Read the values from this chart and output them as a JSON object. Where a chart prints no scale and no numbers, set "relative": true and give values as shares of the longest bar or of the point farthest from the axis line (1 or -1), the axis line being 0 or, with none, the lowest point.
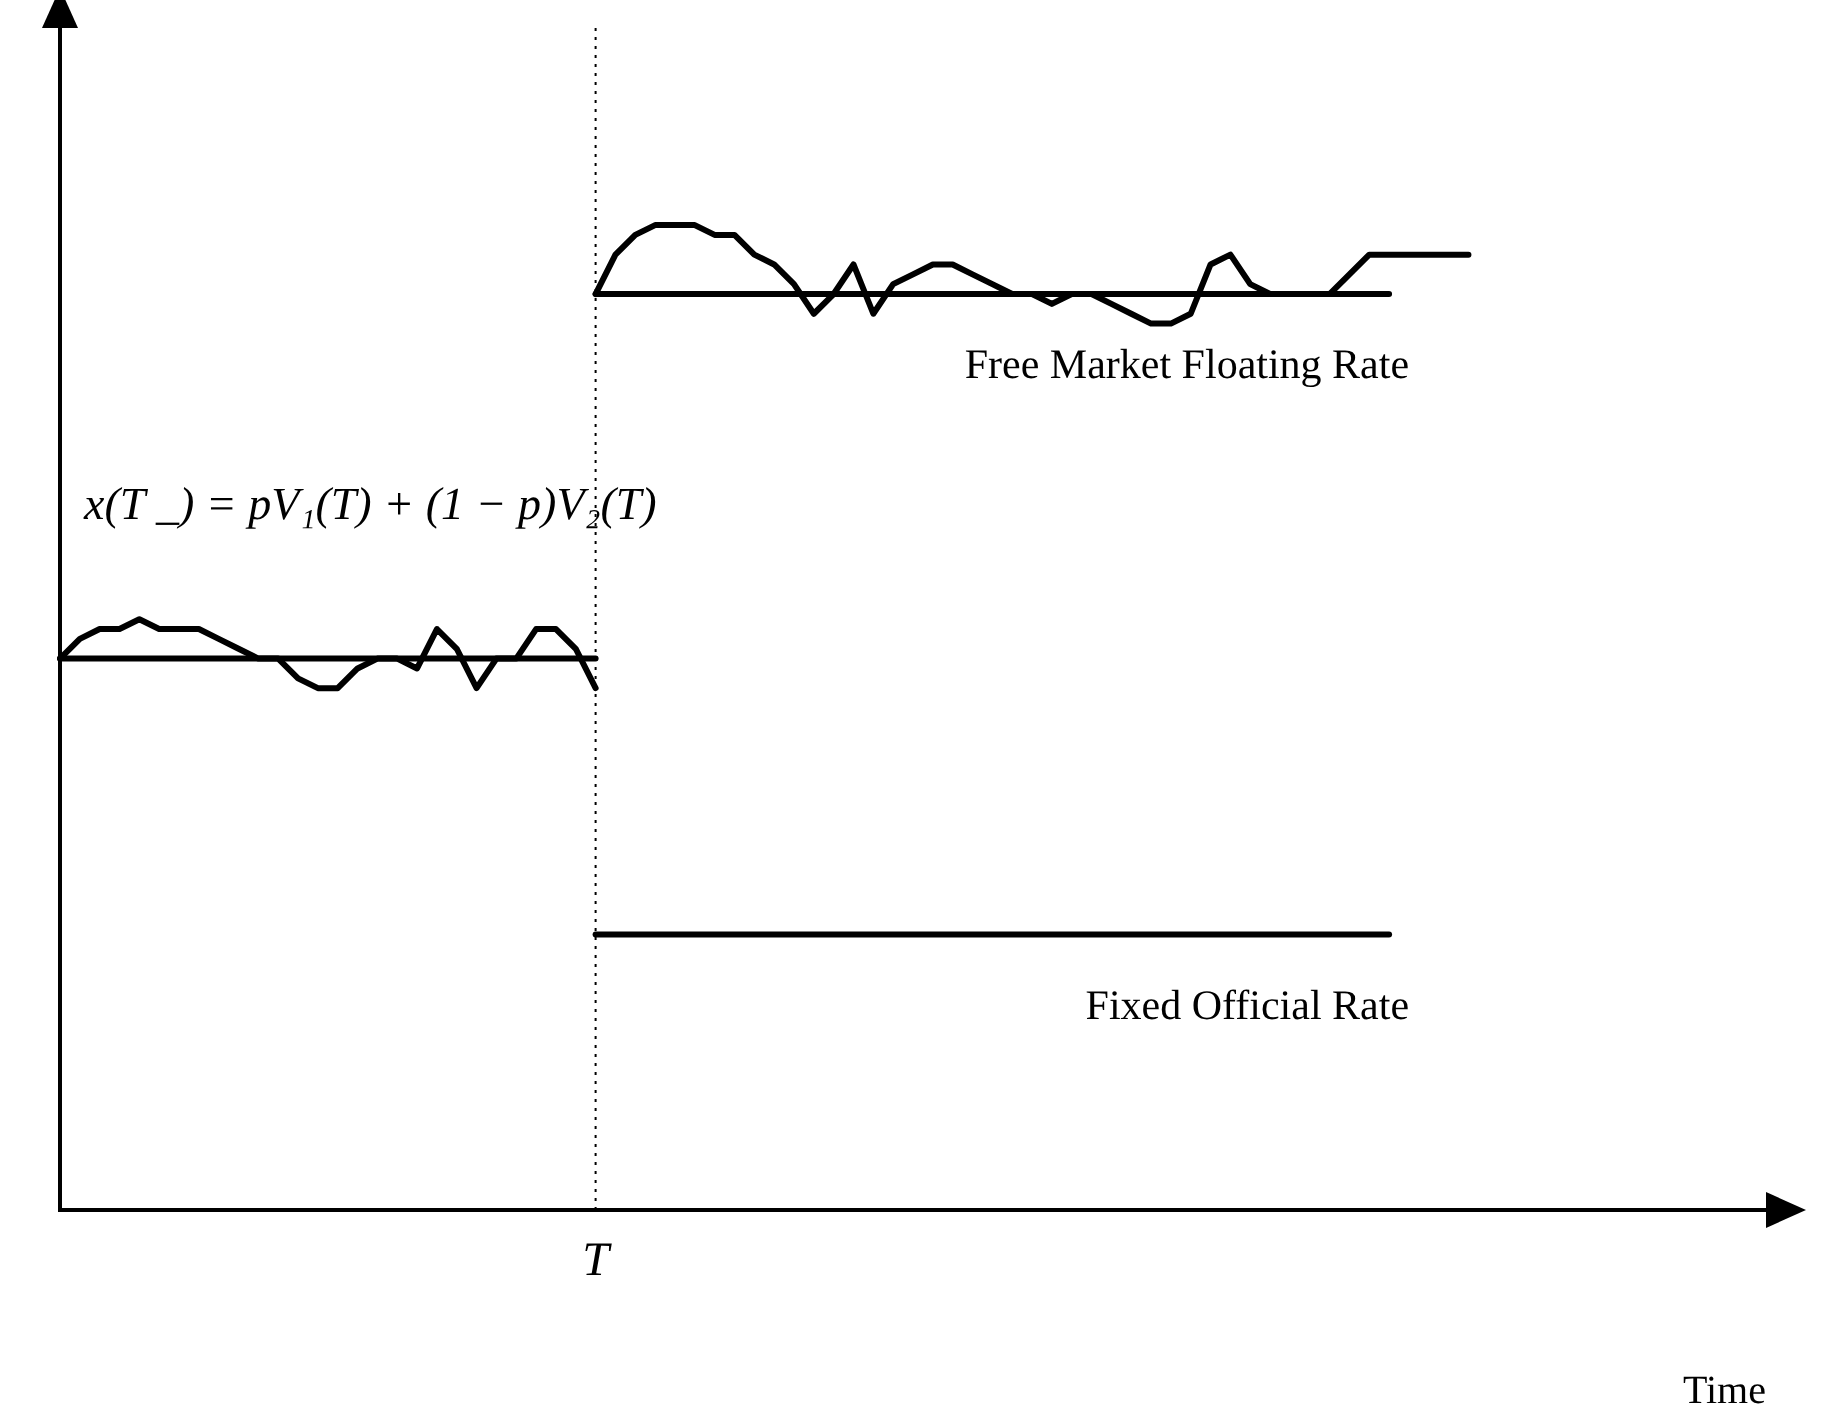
{
  "chart_data": {
    "type": "line",
    "relative": true,
    "xlabel": "Time",
    "legend": false,
    "grid": false,
    "marker": "none",
    "line_style": "solid",
    "categories": [
      null,
      null,
      null,
      null,
      null,
      null,
      null,
      null,
      null,
      null,
      null,
      null,
      null,
      null,
      null,
      null,
      null,
      null,
      null,
      null,
      null,
      null,
      null,
      null,
      null,
      null,
      null,
      null,
      null,
      null,
      null,
      null,
      null,
      null,
      null,
      null,
      null,
      null,
      null,
      null,
      null,
      null,
      null,
      null,
      null,
      null,
      null,
      null,
      null,
      null,
      null,
      null,
      null,
      null,
      null,
      null,
      null,
      null,
      null,
      null,
      null,
      null,
      null,
      null,
      null,
      null,
      null,
      null,
      null,
      null,
      null,
      null,
      null,
      null,
      null,
      null,
      null,
      null,
      null,
      null,
      null,
      null,
      null,
      null,
      null,
      null,
      null
    ],
    "series": [
      {
        "color": "#000000",
        "values": [
          0.56,
          0.58,
          0.59,
          0.59,
          0.6,
          0.59,
          0.59,
          0.59,
          0.58,
          0.57,
          0.56,
          0.56,
          0.54,
          0.53,
          0.53,
          0.55,
          0.56,
          0.56,
          0.55,
          0.59,
          0.57,
          0.53,
          0.56,
          0.56,
          0.59,
          0.59,
          0.57,
          0.53,
          null,
          null,
          null,
          null,
          null,
          null,
          null,
          null,
          null,
          null,
          null,
          null,
          null,
          null,
          null,
          null,
          null,
          null,
          null,
          null,
          null,
          null,
          null,
          null,
          null,
          null,
          null,
          null,
          null,
          null,
          null,
          null,
          null,
          null,
          null,
          null,
          null,
          null,
          null,
          null,
          null,
          null,
          null,
          null,
          null,
          null,
          null,
          null,
          null,
          null,
          null,
          null,
          null,
          null,
          null,
          null,
          null,
          null,
          null
        ]
      },
      {
        "color": "#000000",
        "values": [
          0.56,
          0.56,
          0.56,
          0.56,
          0.56,
          0.56,
          0.56,
          0.56,
          0.56,
          0.56,
          0.56,
          0.56,
          0.56,
          0.56,
          0.56,
          0.56,
          0.56,
          0.56,
          0.56,
          0.56,
          0.56,
          0.56,
          0.56,
          0.56,
          0.56,
          0.56,
          0.56,
          0.56,
          null,
          null,
          null,
          null,
          null,
          null,
          null,
          null,
          null,
          null,
          null,
          null,
          null,
          null,
          null,
          null,
          null,
          null,
          null,
          null,
          null,
          null,
          null,
          null,
          null,
          null,
          null,
          null,
          null,
          null,
          null,
          null,
          null,
          null,
          null,
          null,
          null,
          null,
          null,
          null,
          null,
          null,
          null,
          null,
          null,
          null,
          null,
          null,
          null,
          null,
          null,
          null,
          null,
          null,
          null,
          null,
          null,
          null,
          null
        ]
      },
      {
        "color": "#000000",
        "values": [
          null,
          null,
          null,
          null,
          null,
          null,
          null,
          null,
          null,
          null,
          null,
          null,
          null,
          null,
          null,
          null,
          null,
          null,
          null,
          null,
          null,
          null,
          null,
          null,
          null,
          null,
          null,
          0.93,
          0.97,
          0.99,
          1,
          1,
          1,
          0.99,
          0.99,
          0.97,
          0.96,
          0.94,
          0.91,
          0.93,
          0.96,
          0.91,
          0.94,
          0.95,
          0.96,
          0.96,
          0.95,
          0.94,
          0.93,
          0.93,
          0.92,
          0.93,
          0.93,
          0.92,
          0.91,
          0.9,
          0.9,
          0.91,
          0.96,
          0.97,
          0.94,
          0.93,
          0.93,
          0.93,
          0.93,
          0.95,
          0.97,
          0.97,
          0.97,
          0.97,
          0.97,
          0.97,
          null,
          null,
          null,
          null,
          null,
          null,
          null,
          null,
          null,
          null,
          null,
          null,
          null,
          null,
          null
        ]
      },
      {
        "name": "Free Market Floating Rate",
        "color": "#000000",
        "values": [
          null,
          null,
          null,
          null,
          null,
          null,
          null,
          null,
          null,
          null,
          null,
          null,
          null,
          null,
          null,
          null,
          null,
          null,
          null,
          null,
          null,
          null,
          null,
          null,
          null,
          null,
          null,
          0.93,
          0.93,
          0.93,
          0.93,
          0.93,
          0.93,
          0.93,
          0.93,
          0.93,
          0.93,
          0.93,
          0.93,
          0.93,
          0.93,
          0.93,
          0.93,
          0.93,
          0.93,
          0.93,
          0.93,
          0.93,
          0.93,
          0.93,
          0.93,
          0.93,
          0.93,
          0.93,
          0.93,
          0.93,
          0.93,
          0.93,
          0.93,
          0.93,
          0.93,
          0.93,
          0.93,
          0.93,
          0.93,
          0.93,
          0.93,
          0.93,
          null,
          null,
          null,
          null,
          null,
          null,
          null,
          null,
          null,
          null,
          null,
          null,
          null,
          null,
          null,
          null,
          null,
          null,
          null
        ]
      },
      {
        "name": "Fixed Official Rate",
        "color": "#000000",
        "values": [
          null,
          null,
          null,
          null,
          null,
          null,
          null,
          null,
          null,
          null,
          null,
          null,
          null,
          null,
          null,
          null,
          null,
          null,
          null,
          null,
          null,
          null,
          null,
          null,
          null,
          null,
          null,
          0.28,
          0.28,
          0.28,
          0.28,
          0.28,
          0.28,
          0.28,
          0.28,
          0.28,
          0.28,
          0.28,
          0.28,
          0.28,
          0.28,
          0.28,
          0.28,
          0.28,
          0.28,
          0.28,
          0.28,
          0.28,
          0.28,
          0.28,
          0.28,
          0.28,
          0.28,
          0.28,
          0.28,
          0.28,
          0.28,
          0.28,
          0.28,
          0.28,
          0.28,
          0.28,
          0.28,
          0.28,
          0.28,
          0.28,
          0.28,
          0.28,
          null,
          null,
          null,
          null,
          null,
          null,
          null,
          null,
          null,
          null,
          null,
          null,
          null,
          null,
          null,
          null,
          null,
          null,
          null
        ]
      }
    ],
    "ref_lines": [
      {
        "axis": "x",
        "value": "T",
        "color": "#000000",
        "line_style": "dotted"
      }
    ],
    "annotations": [
      "x(T _) = pV₁(T) + (1 − p)V₂(T)"
    ]
  }
}
